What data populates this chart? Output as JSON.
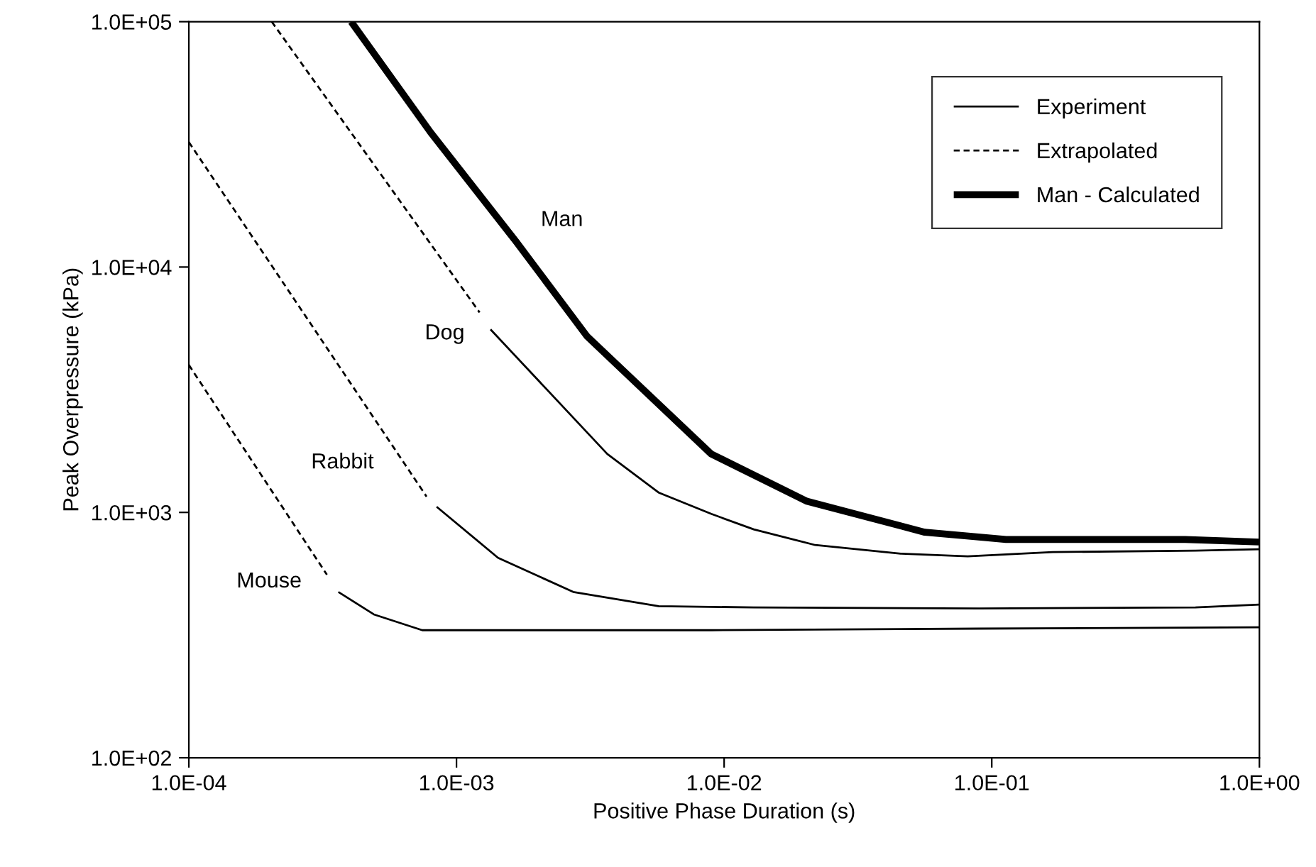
{
  "chart_data": {
    "type": "line",
    "xlabel": "Positive Phase Duration (s)",
    "ylabel": "Peak Overpressure (kPa)",
    "log": "xy",
    "grid": false,
    "legend": "top right",
    "marker": "none",
    "xlim": [
      0.0001,
      1
    ],
    "ylim": [
      100,
      100000
    ],
    "xticks": [
      {
        "value": 0.0001,
        "label": "1.0E-04"
      },
      {
        "value": 0.001,
        "label": "1.0E-03"
      },
      {
        "value": 0.01,
        "label": "1.0E-02"
      },
      {
        "value": 0.1,
        "label": "1.0E-01"
      },
      {
        "value": 1,
        "label": "1.0E+00"
      }
    ],
    "yticks": [
      {
        "value": 100,
        "label": "1.0E+02"
      },
      {
        "value": 1000,
        "label": "1.0E+03"
      },
      {
        "value": 10000,
        "label": "1.0E+04"
      },
      {
        "value": 100000,
        "label": "1.0E+05"
      }
    ],
    "series": [
      {
        "name": "Experiment",
        "color": "#000000",
        "line_style": "solid",
        "x": [
          0.000362,
          0.000491,
          0.000745,
          0.00895,
          0.0895,
          1
        ],
        "values": [
          474,
          384,
          331,
          331,
          336,
          340
        ]
      },
      {
        "name": "Extrapolated",
        "color": "#000000",
        "line_style": "dashed",
        "x": [
          0.0001,
          0.000328
        ],
        "values": [
          3990,
          557
        ]
      },
      {
        "color": "#000000",
        "line_style": "solid",
        "x": [
          0.000843,
          0.00143,
          0.00273,
          0.00569,
          0.0129,
          0.0895,
          0.577,
          1
        ],
        "values": [
          1054,
          653,
          474,
          415,
          410,
          406,
          410,
          421
        ]
      },
      {
        "color": "#000000",
        "line_style": "dashed",
        "x": [
          0.0001,
          0.000773
        ],
        "values": [
          32300,
          1160
        ]
      },
      {
        "color": "#000000",
        "line_style": "solid",
        "x": [
          0.00134,
          0.00366,
          0.00569,
          0.00895,
          0.0129,
          0.0219,
          0.0457,
          0.0813,
          0.169,
          0.577,
          1
        ],
        "values": [
          5570,
          1730,
          1205,
          986,
          853,
          736,
          679,
          662,
          689,
          698,
          708
        ]
      },
      {
        "color": "#000000",
        "line_style": "dashed",
        "x": [
          0.000204,
          0.00122
        ],
        "values": [
          100000,
          6530
        ]
      },
      {
        "name": "Man - Calculated",
        "color": "#000000",
        "line_style": "solid",
        "x": [
          0.000404,
          0.0008,
          0.00167,
          0.00308,
          0.00895,
          0.0204,
          0.0562,
          0.113,
          0.528,
          1
        ],
        "values": [
          100000,
          35400,
          12700,
          5210,
          1730,
          1110,
          830,
          776,
          776,
          757
        ]
      }
    ],
    "annotations": [
      "Man",
      "Dog",
      "Rabbit",
      "Mouse"
    ]
  }
}
